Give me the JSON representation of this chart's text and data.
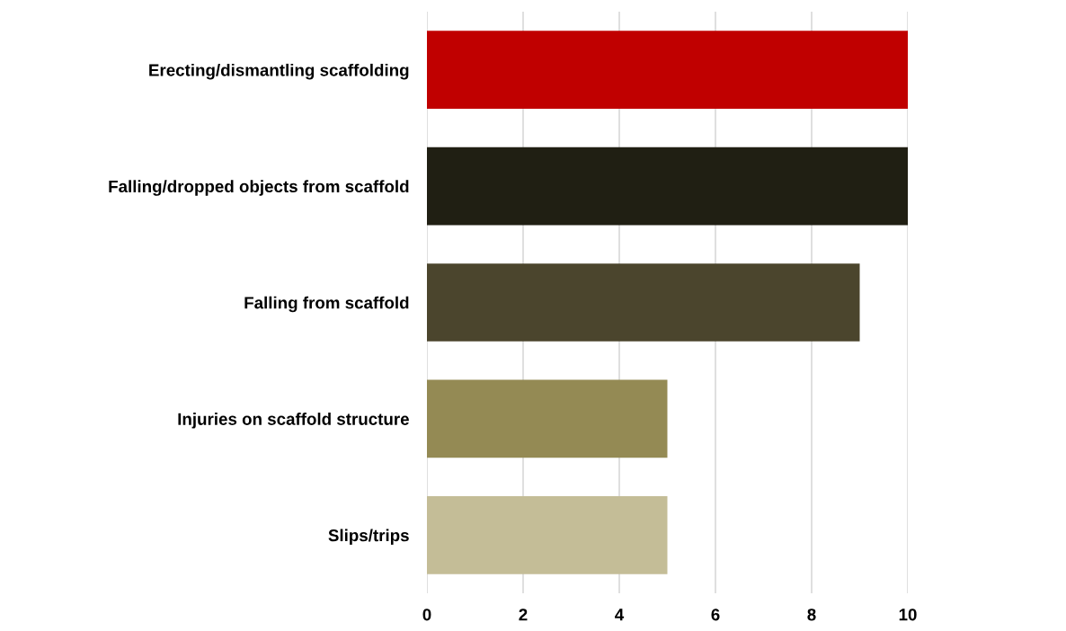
{
  "chart_data": {
    "type": "bar",
    "orientation": "horizontal",
    "categories": [
      "Erecting/dismantling scaffolding",
      "Falling/dropped objects from scaffold",
      "Falling from scaffold",
      "Injuries on scaffold structure",
      "Slips/trips"
    ],
    "values": [
      10,
      10,
      9,
      5,
      5
    ],
    "colors": [
      "#c00000",
      "#201f13",
      "#4b452d",
      "#948a54",
      "#c4bd97"
    ],
    "xlim": [
      0,
      10
    ],
    "xticks": [
      0,
      2,
      4,
      6,
      8,
      10
    ],
    "grid": "x"
  }
}
